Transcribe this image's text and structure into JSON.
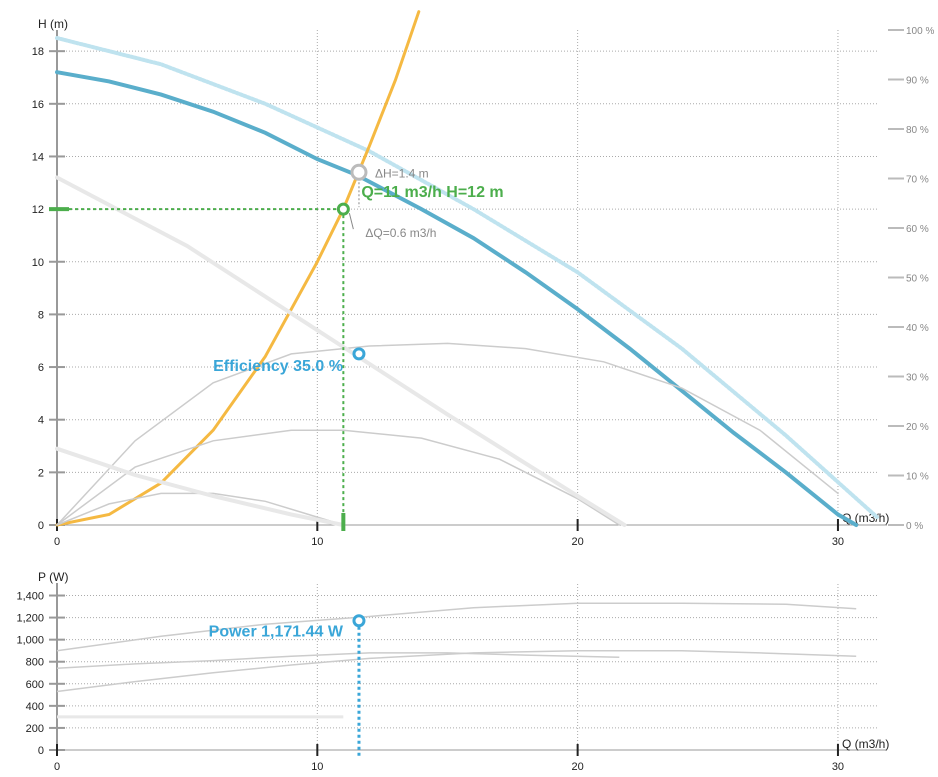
{
  "colors": {
    "pump_curve": "#5aaecb",
    "pump_curve_max": "#bfe3ef",
    "system_curve": "#f5b942",
    "operating_point": "#4cae4c",
    "grey_curve": "#cccccc",
    "light_curve": "#e8e8e8",
    "power_marker": "#3aa6d8",
    "grid": "#aaaaaa",
    "axis_text": "#222222",
    "right_axis_text": "#888888"
  },
  "chart_data": [
    {
      "name": "head-chart",
      "type": "line",
      "ylabel": "H (m)",
      "xlabel": "Q (m3/h)",
      "xlim": [
        0,
        31.5
      ],
      "ylim": [
        0,
        18.5
      ],
      "x_ticks": [
        0,
        10,
        20,
        30
      ],
      "x_tick_labels": [
        "0",
        "10",
        "20",
        "30"
      ],
      "y_ticks": [
        0,
        2,
        4,
        6,
        8,
        10,
        12,
        14,
        16,
        18
      ],
      "y_tick_labels": [
        "0",
        "2",
        "4",
        "6",
        "8",
        "10",
        "12",
        "14",
        "16",
        "18"
      ],
      "right_axis": {
        "ticks": [
          0,
          10,
          20,
          30,
          40,
          50,
          60,
          70,
          80,
          90,
          100
        ],
        "labels": [
          "0 %",
          "10 %",
          "20 %",
          "30 %",
          "40 %",
          "50 %",
          "60 %",
          "70 %",
          "80 %",
          "90 %",
          "100 %"
        ],
        "lim": [
          0,
          100
        ]
      },
      "series": [
        {
          "kind": "pump_curve",
          "x": [
            0,
            2,
            4,
            6,
            8,
            10,
            11.5,
            14,
            16,
            18,
            20,
            22,
            24,
            26,
            28,
            30,
            30.7
          ],
          "y": [
            17.2,
            16.85,
            16.35,
            15.7,
            14.9,
            13.9,
            13.3,
            12.0,
            10.9,
            9.6,
            8.2,
            6.7,
            5.1,
            3.5,
            2.0,
            0.4,
            0.0
          ]
        },
        {
          "kind": "pump_curve_max",
          "x": [
            0,
            4,
            8,
            12,
            16,
            20,
            24,
            28,
            31.5
          ],
          "y": [
            18.5,
            17.5,
            16.0,
            14.2,
            12.0,
            9.6,
            6.7,
            3.4,
            0.3
          ]
        },
        {
          "kind": "system_curve",
          "x": [
            0,
            2,
            4,
            6,
            8,
            10,
            11,
            12,
            13,
            13.9
          ],
          "y": [
            0.0,
            0.4,
            1.6,
            3.6,
            6.4,
            10.0,
            12.0,
            14.4,
            16.9,
            19.5
          ]
        },
        {
          "kind": "efficiency_curve",
          "x": [
            0,
            3,
            6,
            9,
            12,
            15,
            18,
            21,
            24,
            27,
            30
          ],
          "y": [
            0.0,
            3.2,
            5.4,
            6.5,
            6.8,
            6.9,
            6.7,
            6.2,
            5.2,
            3.6,
            1.2
          ]
        },
        {
          "kind": "efficiency_curve",
          "x": [
            0,
            3,
            6,
            9,
            11,
            14,
            17,
            20,
            21.6
          ],
          "y": [
            0.0,
            2.2,
            3.2,
            3.6,
            3.6,
            3.3,
            2.5,
            1.0,
            0.0
          ]
        },
        {
          "kind": "efficiency_curve",
          "x": [
            0,
            2,
            4,
            6,
            8,
            10,
            11
          ],
          "y": [
            0.0,
            0.8,
            1.2,
            1.2,
            0.9,
            0.3,
            0.0
          ]
        },
        {
          "kind": "light_curve",
          "x": [
            0,
            5,
            10,
            15,
            20,
            21.8
          ],
          "y": [
            13.2,
            10.6,
            7.4,
            4.2,
            1.1,
            0.0
          ]
        },
        {
          "kind": "light_curve",
          "x": [
            0,
            3,
            6,
            9,
            11
          ],
          "y": [
            2.9,
            1.9,
            1.1,
            0.4,
            0.0
          ]
        }
      ],
      "operating_point": {
        "q": 11,
        "h": 12,
        "label": "Q=11 m3/h H=12 m"
      },
      "intersection_point": {
        "q": 11.6,
        "h": 13.4
      },
      "delta_h_label": "ΔH=1.4 m",
      "delta_q_label": "ΔQ=0.6 m3/h",
      "efficiency_point": {
        "q": 11.6,
        "h": 6.5,
        "label": "Efficiency 35.0 %"
      }
    },
    {
      "name": "power-chart",
      "type": "line",
      "ylabel": "P (W)",
      "xlabel": "Q (m3/h)",
      "xlim": [
        0,
        31.5
      ],
      "ylim": [
        0,
        1450
      ],
      "x_ticks": [
        0,
        10,
        20,
        30
      ],
      "x_tick_labels": [
        "0",
        "10",
        "20",
        "30"
      ],
      "y_ticks": [
        0,
        200,
        400,
        600,
        800,
        1000,
        1200,
        1400
      ],
      "y_tick_labels": [
        "0",
        "200",
        "400",
        "600",
        "800",
        "1,000",
        "1,200",
        "1,400"
      ],
      "series": [
        {
          "kind": "power_curve",
          "x": [
            0,
            4,
            8,
            12,
            16,
            20,
            24,
            28,
            30.7
          ],
          "y": [
            900,
            1030,
            1140,
            1210,
            1290,
            1330,
            1330,
            1320,
            1280
          ]
        },
        {
          "kind": "power_curve",
          "x": [
            0,
            3,
            6,
            9,
            12,
            15,
            18,
            21.6
          ],
          "y": [
            740,
            780,
            810,
            850,
            880,
            880,
            860,
            840
          ]
        },
        {
          "kind": "power_curve",
          "x": [
            0,
            3,
            6,
            9,
            12,
            16,
            20,
            24,
            27,
            30.7
          ],
          "y": [
            530,
            620,
            700,
            770,
            830,
            880,
            900,
            900,
            880,
            850
          ]
        },
        {
          "kind": "light_curve",
          "x": [
            0,
            11
          ],
          "y": [
            300,
            300
          ]
        }
      ],
      "power_point": {
        "q": 11.6,
        "p": 1171.44,
        "label": "Power 1,171.44 W"
      }
    }
  ]
}
